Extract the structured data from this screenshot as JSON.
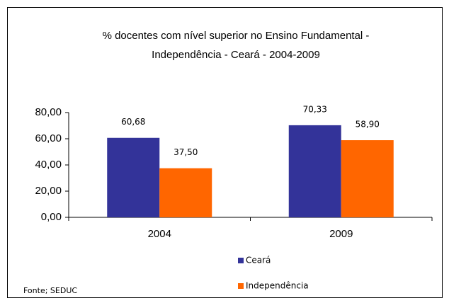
{
  "chart_data": {
    "type": "bar",
    "title": [
      "% docentes com nível  superior no Ensino Fundamental  -",
      "Independência -  Ceará - 2004-2009"
    ],
    "categories": [
      "2004",
      "2009"
    ],
    "series": [
      {
        "name": "Ceará",
        "color": "#333399",
        "values": [
          60.68,
          70.33
        ],
        "value_labels": [
          "60,68",
          "70,33"
        ]
      },
      {
        "name": "Independência",
        "color": "#ff6600",
        "values": [
          37.5,
          58.9
        ],
        "value_labels": [
          "37,50",
          "58,90"
        ]
      }
    ],
    "ylim": [
      0,
      80
    ],
    "yticks": [
      {
        "value": 0,
        "label": "0,00"
      },
      {
        "value": 20,
        "label": "20,00"
      },
      {
        "value": 40,
        "label": "40,00"
      },
      {
        "value": 60,
        "label": "60,00"
      },
      {
        "value": 80,
        "label": "80,00"
      }
    ],
    "grid": false,
    "legend": "bottom",
    "source": "Fonte; SEDUC"
  }
}
